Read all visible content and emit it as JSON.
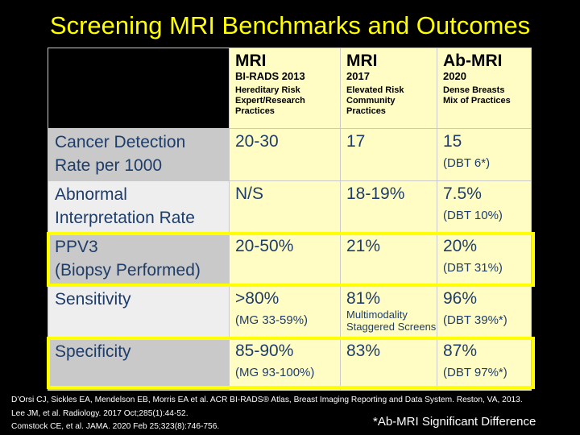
{
  "title": "Screening MRI Benchmarks and Outcomes",
  "columns": [
    {
      "name": "MRI",
      "subtitle": "BI-RADS 2013",
      "description": [
        "Hereditary Risk",
        "Expert/Research",
        "Practices"
      ]
    },
    {
      "name": "MRI",
      "subtitle": "2017",
      "description": [
        "Elevated Risk",
        "Community",
        "Practices"
      ]
    },
    {
      "name": "Ab-MRI",
      "subtitle": "2020",
      "description": [
        "Dense Breasts",
        "Mix of Practices"
      ]
    }
  ],
  "rows": [
    {
      "label": [
        "Cancer Detection",
        "Rate per 1000"
      ],
      "cells": [
        {
          "value": "20-30",
          "note": ""
        },
        {
          "value": "17",
          "note": ""
        },
        {
          "value": "15",
          "note": "(DBT 6*)"
        }
      ]
    },
    {
      "label": [
        "Abnormal",
        "Interpretation Rate"
      ],
      "cells": [
        {
          "value": "N/S",
          "note": ""
        },
        {
          "value": "18-19%",
          "note": ""
        },
        {
          "value": "7.5%",
          "note": "(DBT 10%)"
        }
      ]
    },
    {
      "label": [
        "PPV3",
        "(Biopsy Performed)"
      ],
      "cells": [
        {
          "value": "20-50%",
          "note": ""
        },
        {
          "value": "21%",
          "note": ""
        },
        {
          "value": "20%",
          "note": "(DBT 31%)"
        }
      ]
    },
    {
      "label": [
        "Sensitivity"
      ],
      "cells": [
        {
          "value": ">80%",
          "note": "(MG 33-59%)"
        },
        {
          "value": "81%",
          "note": "Multimodality Staggered Screens"
        },
        {
          "value": "96%",
          "note": "(DBT 39%*)"
        }
      ]
    },
    {
      "label": [
        "Specificity"
      ],
      "cells": [
        {
          "value": "85-90%",
          "note": "(MG 93-100%)"
        },
        {
          "value": "83%",
          "note": ""
        },
        {
          "value": "87%",
          "note": "(DBT 97%*)"
        }
      ]
    }
  ],
  "references": [
    "D’Orsi CJ, Sickles EA, Mendelson EB, Morris EA et al. ACR BI-RADS® Atlas, Breast Imaging Reporting and Data System. Reston, VA, 2013.",
    "Lee JM, et al. Radiology.  2017 Oct;285(1):44-52.",
    "Comstock CE, et al. JAMA. 2020 Feb 25;323(8):746-756."
  ],
  "footnote": "*Ab-MRI Significant Difference",
  "colors": {
    "title": "#ffff00",
    "highlight": "#ffff00",
    "cell": "#fffdc4",
    "text": "#1f3d6a"
  }
}
